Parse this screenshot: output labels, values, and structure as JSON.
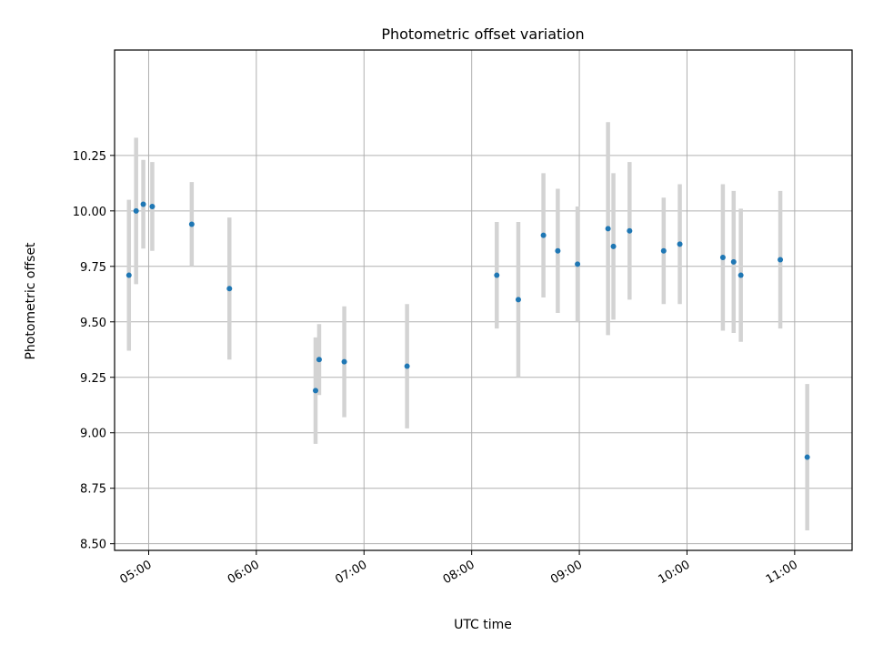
{
  "chart_data": {
    "type": "scatter",
    "title": "Photometric offset variation",
    "xlabel": "UTC time",
    "ylabel": "Photometric offset",
    "x_ticks": [
      "05:00",
      "06:00",
      "07:00",
      "08:00",
      "09:00",
      "10:00",
      "11:00"
    ],
    "y_ticks": [
      "8.50",
      "8.75",
      "9.00",
      "9.25",
      "9.50",
      "9.75",
      "10.00",
      "10.25"
    ],
    "xlim": [
      "04:41",
      "11:32"
    ],
    "ylim": [
      8.47,
      10.725
    ],
    "grid": true,
    "colors": {
      "point": "#1f77b4",
      "errorbar": "#d3d3d3",
      "grid": "#b0b0b0"
    },
    "points": [
      {
        "x": "04:49",
        "y": 9.71,
        "yerr_low": 0.34,
        "yerr_high": 0.34
      },
      {
        "x": "04:53",
        "y": 10.0,
        "yerr_low": 0.33,
        "yerr_high": 0.33
      },
      {
        "x": "04:57",
        "y": 10.03,
        "yerr_low": 0.2,
        "yerr_high": 0.2
      },
      {
        "x": "05:02",
        "y": 10.02,
        "yerr_low": 0.2,
        "yerr_high": 0.2
      },
      {
        "x": "05:24",
        "y": 9.94,
        "yerr_low": 0.19,
        "yerr_high": 0.19
      },
      {
        "x": "05:45",
        "y": 9.65,
        "yerr_low": 0.32,
        "yerr_high": 0.32
      },
      {
        "x": "06:33",
        "y": 9.19,
        "yerr_low": 0.24,
        "yerr_high": 0.24
      },
      {
        "x": "06:35",
        "y": 9.33,
        "yerr_low": 0.16,
        "yerr_high": 0.16
      },
      {
        "x": "06:49",
        "y": 9.32,
        "yerr_low": 0.25,
        "yerr_high": 0.25
      },
      {
        "x": "07:24",
        "y": 9.3,
        "yerr_low": 0.28,
        "yerr_high": 0.28
      },
      {
        "x": "08:14",
        "y": 9.71,
        "yerr_low": 0.24,
        "yerr_high": 0.24
      },
      {
        "x": "08:26",
        "y": 9.6,
        "yerr_low": 0.35,
        "yerr_high": 0.35
      },
      {
        "x": "08:40",
        "y": 9.89,
        "yerr_low": 0.28,
        "yerr_high": 0.28
      },
      {
        "x": "08:48",
        "y": 9.82,
        "yerr_low": 0.28,
        "yerr_high": 0.28
      },
      {
        "x": "08:59",
        "y": 9.76,
        "yerr_low": 0.26,
        "yerr_high": 0.26
      },
      {
        "x": "09:16",
        "y": 9.92,
        "yerr_low": 0.48,
        "yerr_high": 0.48
      },
      {
        "x": "09:19",
        "y": 9.84,
        "yerr_low": 0.33,
        "yerr_high": 0.33
      },
      {
        "x": "09:28",
        "y": 9.91,
        "yerr_low": 0.31,
        "yerr_high": 0.31
      },
      {
        "x": "09:47",
        "y": 9.82,
        "yerr_low": 0.24,
        "yerr_high": 0.24
      },
      {
        "x": "09:56",
        "y": 9.85,
        "yerr_low": 0.27,
        "yerr_high": 0.27
      },
      {
        "x": "10:20",
        "y": 9.79,
        "yerr_low": 0.33,
        "yerr_high": 0.33
      },
      {
        "x": "10:26",
        "y": 9.77,
        "yerr_low": 0.32,
        "yerr_high": 0.32
      },
      {
        "x": "10:30",
        "y": 9.71,
        "yerr_low": 0.3,
        "yerr_high": 0.3
      },
      {
        "x": "10:52",
        "y": 9.78,
        "yerr_low": 0.31,
        "yerr_high": 0.31
      },
      {
        "x": "11:07",
        "y": 8.89,
        "yerr_low": 0.33,
        "yerr_high": 0.33
      }
    ]
  }
}
